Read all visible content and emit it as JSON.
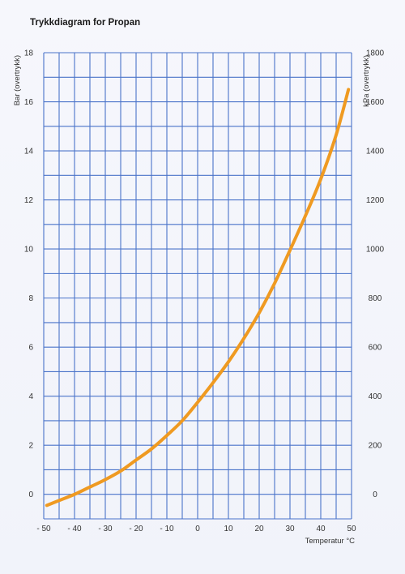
{
  "chart_data": {
    "type": "line",
    "title": "Trykkdiagram for Propan",
    "xlabel": "Temperatur °C",
    "ylabel": "Bar (overtrykk)",
    "y2label": "kPa (overtrykk)",
    "xlim": [
      -50,
      50
    ],
    "ylim": [
      -1,
      18
    ],
    "y2lim": [
      -100,
      1800
    ],
    "grid": true,
    "x_ticks": [
      "- 50",
      "- 40",
      "- 30",
      "- 20",
      "- 10",
      "0",
      "10",
      "20",
      "30",
      "40",
      "50"
    ],
    "x_tick_values": [
      -50,
      -40,
      -30,
      -20,
      -10,
      0,
      10,
      20,
      30,
      40,
      50
    ],
    "y_ticks": [
      "0",
      "2",
      "4",
      "6",
      "8",
      "10",
      "12",
      "14",
      "16",
      "18"
    ],
    "y_tick_values": [
      0,
      2,
      4,
      6,
      8,
      10,
      12,
      14,
      16,
      18
    ],
    "y2_ticks": [
      "0",
      "200",
      "400",
      "600",
      "800",
      "1000",
      "1200",
      "1400",
      "1600",
      "1800"
    ],
    "y2_tick_values": [
      0,
      200,
      400,
      600,
      800,
      1000,
      1200,
      1400,
      1600,
      1800
    ],
    "x_minor_step": 5,
    "y_minor_step": 1,
    "line_color": "#ef9a21",
    "grid_color": "#4a73c9",
    "series": [
      {
        "x": [
          -49,
          -45,
          -40,
          -35,
          -30,
          -25,
          -20,
          -15,
          -10,
          -5,
          0,
          5,
          10,
          15,
          20,
          25,
          30,
          35,
          40,
          45,
          49
        ],
        "values": [
          -0.45,
          -0.25,
          0.0,
          0.3,
          0.6,
          0.95,
          1.4,
          1.85,
          2.4,
          3.0,
          3.75,
          4.55,
          5.4,
          6.35,
          7.4,
          8.6,
          9.95,
          11.35,
          12.85,
          14.65,
          16.5
        ]
      }
    ]
  }
}
